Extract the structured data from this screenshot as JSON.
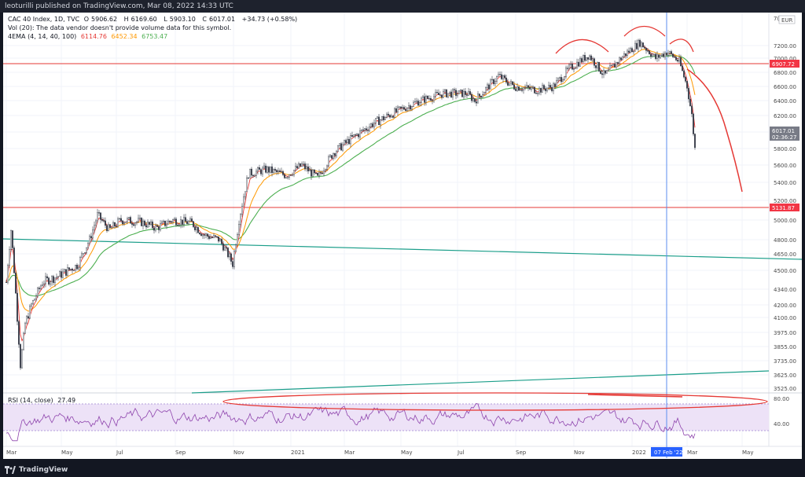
{
  "header": {
    "publish_line": "leoturilli published on TradingView.com, Mar 08, 2022 14:33 UTC"
  },
  "legend": {
    "symbol": "CAC 40 Index, 1D, TVC",
    "ohlc": {
      "open_label": "O",
      "open": "5906.62",
      "high_label": "H",
      "high": "6169.60",
      "low_label": "L",
      "low": "5903.10",
      "close_label": "C",
      "close": "6017.01",
      "change": "+34.73 (+0.58%)"
    },
    "vol_line": "Vol (20): The data vendor doesn't provide volume data for this symbol.",
    "ema_label": "4EMA (4, 14, 40, 100)",
    "ema_values": [
      {
        "value": "6114.76",
        "color": "#e53935"
      },
      {
        "value": "6452.34",
        "color": "#ff9800"
      },
      {
        "value": "6753.47",
        "color": "#4caf50"
      }
    ],
    "rsi_label": "RSI (14, close)",
    "rsi_value": "27.49"
  },
  "currency": "EUR",
  "corner_label": "7(",
  "footer": {
    "brand": "TradingView"
  },
  "chart_data": [
    {
      "type": "candlestick",
      "title": "CAC 40 Index, 1D, TVC",
      "price_scale": {
        "ticks": [
          7200,
          7000,
          6800,
          6600,
          6400,
          6200,
          6000,
          5800,
          5600,
          5400,
          5200,
          5000,
          4800,
          4650,
          4500,
          4340,
          4200,
          4100,
          3975,
          3855,
          3735,
          3625,
          3525
        ],
        "tick_labels": [
          "7200.00",
          "7000.00",
          "6800.00",
          "6600.00",
          "6400.00",
          "6200.00",
          "6000.00",
          "5800.00",
          "5600.00",
          "5400.00",
          "5200.00",
          "5000.00",
          "4800.00",
          "4650.00",
          "4500.00",
          "4340.00",
          "4200.00",
          "4100.00",
          "3975.00",
          "3855.00",
          "3735.00",
          "3625.00",
          "3525.00"
        ],
        "log_scale": true
      },
      "time_scale": {
        "labels": [
          "Mar",
          "May",
          "Jul",
          "Sep",
          "Nov",
          "2021",
          "Mar",
          "May",
          "Jul",
          "Sep",
          "Nov",
          "2022",
          "Mar",
          "May"
        ],
        "highlight_label": "07 Feb '22"
      },
      "price_tags": [
        {
          "value": "6907.72",
          "color": "#f23645"
        },
        {
          "value": "6017.01",
          "color": "#787b86",
          "sub": "02:36:27"
        },
        {
          "value": "5131.87",
          "color": "#f23645"
        }
      ],
      "horizontal_lines": [
        6907.72,
        5131.87
      ],
      "close_approx": [
        {
          "x": "2020-03",
          "y": 4400
        },
        {
          "x": "2020-03-18",
          "y": 3750
        },
        {
          "x": "2020-04",
          "y": 4300
        },
        {
          "x": "2020-05",
          "y": 4450
        },
        {
          "x": "2020-06",
          "y": 4950
        },
        {
          "x": "2020-07",
          "y": 5050
        },
        {
          "x": "2020-08",
          "y": 4900
        },
        {
          "x": "2020-09",
          "y": 5000
        },
        {
          "x": "2020-10-30",
          "y": 4600
        },
        {
          "x": "2020-11",
          "y": 5500
        },
        {
          "x": "2020-12",
          "y": 5550
        },
        {
          "x": "2021-01",
          "y": 5500
        },
        {
          "x": "2021-02",
          "y": 5750
        },
        {
          "x": "2021-03",
          "y": 6050
        },
        {
          "x": "2021-04",
          "y": 6250
        },
        {
          "x": "2021-05",
          "y": 6450
        },
        {
          "x": "2021-06",
          "y": 6600
        },
        {
          "x": "2021-07",
          "y": 6550
        },
        {
          "x": "2021-08",
          "y": 6800
        },
        {
          "x": "2021-09",
          "y": 6550
        },
        {
          "x": "2021-10",
          "y": 6600
        },
        {
          "x": "2021-11",
          "y": 7050
        },
        {
          "x": "2021-12",
          "y": 7000
        },
        {
          "x": "2022-01",
          "y": 7200
        },
        {
          "x": "2022-02",
          "y": 6900
        },
        {
          "x": "2022-03-07",
          "y": 5800
        },
        {
          "x": "2022-03-08",
          "y": 6017
        }
      ]
    },
    {
      "type": "line",
      "title": "RSI (14, close)",
      "levels": [
        80,
        40
      ],
      "level_labels": [
        "80.00",
        "40.00"
      ],
      "last": 27.49
    }
  ]
}
